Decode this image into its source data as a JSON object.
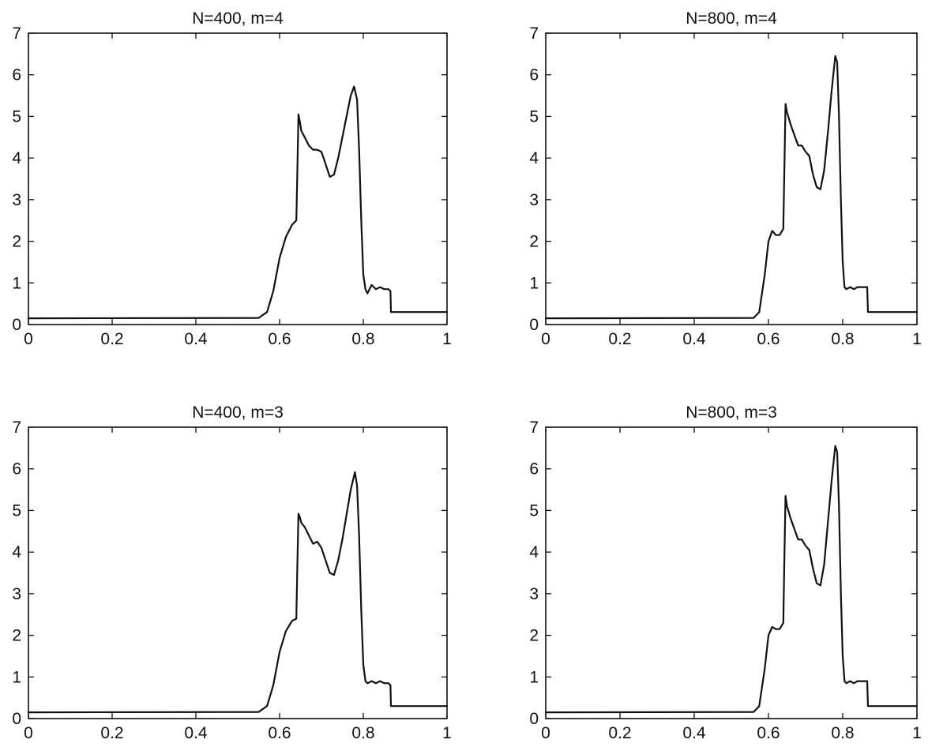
{
  "chart_data": [
    {
      "type": "line",
      "title": "N=400, m=4",
      "xlabel": "",
      "ylabel": "",
      "xlim": [
        0,
        1
      ],
      "ylim": [
        0,
        7
      ],
      "xticks": [
        "0",
        "0.2",
        "0.4",
        "0.6",
        "0.8",
        "1"
      ],
      "yticks": [
        "0",
        "1",
        "2",
        "3",
        "4",
        "5",
        "6",
        "7"
      ],
      "grid": false,
      "series": [
        {
          "x": [
            0,
            0.55,
            0.57,
            0.585,
            0.6,
            0.615,
            0.63,
            0.64,
            0.642,
            0.645,
            0.648,
            0.652,
            0.66,
            0.67,
            0.68,
            0.69,
            0.7,
            0.71,
            0.72,
            0.73,
            0.74,
            0.75,
            0.76,
            0.77,
            0.778,
            0.785,
            0.79,
            0.795,
            0.8,
            0.805,
            0.81,
            0.82,
            0.83,
            0.84,
            0.85,
            0.86,
            0.865,
            0.866,
            0.88,
            1
          ],
          "y": [
            0.15,
            0.16,
            0.3,
            0.8,
            1.6,
            2.1,
            2.4,
            2.5,
            3.5,
            5.05,
            4.9,
            4.65,
            4.5,
            4.3,
            4.2,
            4.2,
            4.15,
            3.85,
            3.55,
            3.6,
            4.0,
            4.5,
            5.0,
            5.5,
            5.72,
            5.4,
            4.2,
            2.5,
            1.2,
            0.85,
            0.75,
            0.95,
            0.85,
            0.9,
            0.85,
            0.85,
            0.8,
            0.3,
            0.3,
            0.3
          ]
        }
      ]
    },
    {
      "type": "line",
      "title": "N=800, m=4",
      "xlabel": "",
      "ylabel": "",
      "xlim": [
        0,
        1
      ],
      "ylim": [
        0,
        7
      ],
      "xticks": [
        "0",
        "0.2",
        "0.4",
        "0.6",
        "0.8",
        "1"
      ],
      "yticks": [
        "0",
        "1",
        "2",
        "3",
        "4",
        "5",
        "6",
        "7"
      ],
      "grid": false,
      "series": [
        {
          "x": [
            0,
            0.56,
            0.575,
            0.59,
            0.6,
            0.61,
            0.62,
            0.63,
            0.64,
            0.643,
            0.646,
            0.65,
            0.66,
            0.67,
            0.68,
            0.69,
            0.7,
            0.71,
            0.72,
            0.73,
            0.74,
            0.75,
            0.76,
            0.77,
            0.78,
            0.785,
            0.79,
            0.795,
            0.8,
            0.805,
            0.81,
            0.82,
            0.83,
            0.84,
            0.85,
            0.86,
            0.866,
            0.868,
            0.88,
            1
          ],
          "y": [
            0.15,
            0.16,
            0.3,
            1.2,
            2.0,
            2.25,
            2.15,
            2.15,
            2.3,
            3.8,
            5.3,
            5.1,
            4.8,
            4.55,
            4.3,
            4.3,
            4.15,
            4.05,
            3.6,
            3.3,
            3.25,
            3.7,
            4.6,
            5.6,
            6.45,
            6.3,
            5.0,
            3.0,
            1.5,
            0.9,
            0.85,
            0.9,
            0.85,
            0.9,
            0.9,
            0.9,
            0.9,
            0.3,
            0.3,
            0.3
          ]
        }
      ]
    },
    {
      "type": "line",
      "title": "N=400, m=3",
      "xlabel": "",
      "ylabel": "",
      "xlim": [
        0,
        1
      ],
      "ylim": [
        0,
        7
      ],
      "xticks": [
        "0",
        "0.2",
        "0.4",
        "0.6",
        "0.8",
        "1"
      ],
      "yticks": [
        "0",
        "1",
        "2",
        "3",
        "4",
        "5",
        "6",
        "7"
      ],
      "grid": false,
      "series": [
        {
          "x": [
            0,
            0.55,
            0.57,
            0.585,
            0.6,
            0.615,
            0.63,
            0.64,
            0.642,
            0.645,
            0.648,
            0.652,
            0.66,
            0.67,
            0.68,
            0.69,
            0.7,
            0.71,
            0.72,
            0.73,
            0.74,
            0.75,
            0.76,
            0.77,
            0.78,
            0.785,
            0.79,
            0.795,
            0.8,
            0.805,
            0.81,
            0.82,
            0.83,
            0.84,
            0.85,
            0.86,
            0.865,
            0.866,
            0.88,
            1
          ],
          "y": [
            0.15,
            0.16,
            0.3,
            0.8,
            1.6,
            2.1,
            2.35,
            2.4,
            3.5,
            4.92,
            4.85,
            4.7,
            4.6,
            4.4,
            4.2,
            4.25,
            4.1,
            3.8,
            3.5,
            3.45,
            3.8,
            4.3,
            4.9,
            5.5,
            5.92,
            5.6,
            4.4,
            2.6,
            1.3,
            0.9,
            0.85,
            0.9,
            0.85,
            0.9,
            0.85,
            0.85,
            0.8,
            0.3,
            0.3,
            0.3
          ]
        }
      ]
    },
    {
      "type": "line",
      "title": "N=800, m=3",
      "xlabel": "",
      "ylabel": "",
      "xlim": [
        0,
        1
      ],
      "ylim": [
        0,
        7
      ],
      "xticks": [
        "0",
        "0.2",
        "0.4",
        "0.6",
        "0.8",
        "1"
      ],
      "yticks": [
        "0",
        "1",
        "2",
        "3",
        "4",
        "5",
        "6",
        "7"
      ],
      "grid": false,
      "series": [
        {
          "x": [
            0,
            0.56,
            0.575,
            0.59,
            0.6,
            0.61,
            0.62,
            0.63,
            0.64,
            0.643,
            0.646,
            0.65,
            0.66,
            0.67,
            0.68,
            0.69,
            0.7,
            0.71,
            0.72,
            0.73,
            0.74,
            0.75,
            0.76,
            0.77,
            0.78,
            0.785,
            0.79,
            0.795,
            0.8,
            0.805,
            0.81,
            0.82,
            0.83,
            0.84,
            0.85,
            0.86,
            0.866,
            0.868,
            0.88,
            1
          ],
          "y": [
            0.15,
            0.16,
            0.3,
            1.2,
            2.0,
            2.2,
            2.15,
            2.15,
            2.3,
            3.9,
            5.35,
            5.1,
            4.8,
            4.55,
            4.3,
            4.3,
            4.15,
            4.05,
            3.6,
            3.25,
            3.2,
            3.7,
            4.7,
            5.7,
            6.55,
            6.4,
            5.1,
            3.0,
            1.5,
            0.9,
            0.85,
            0.9,
            0.85,
            0.9,
            0.9,
            0.9,
            0.9,
            0.3,
            0.3,
            0.3
          ]
        }
      ]
    }
  ]
}
